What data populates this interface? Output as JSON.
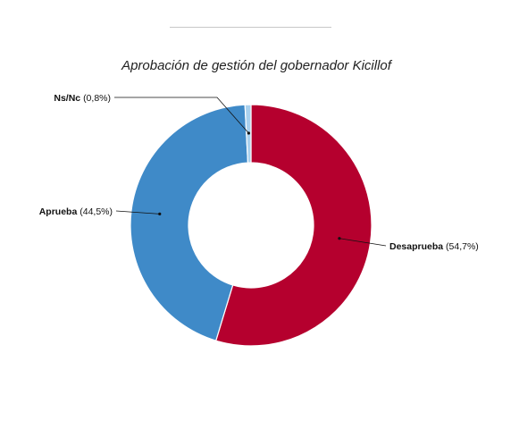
{
  "chart_data": {
    "type": "pie",
    "variant": "donut",
    "title": "Aprobación de gestión del gobernador Kicillof",
    "slices": [
      {
        "label": "Desaprueba",
        "value": 54.7,
        "value_text": "(54,7%)",
        "color": "#b5002e"
      },
      {
        "label": "Aprueba",
        "value": 44.5,
        "value_text": "(44,5%)",
        "color": "#3f8ac8"
      },
      {
        "label": "Ns/Nc",
        "value": 0.8,
        "value_text": "(0,8%)",
        "color": "#a9d1ee"
      }
    ],
    "start_angle": "12 o'clock",
    "direction": "clockwise",
    "legend": "none",
    "labels": "outside with leader lines"
  },
  "colors": {
    "top_rule": "#c8c8c8",
    "slice_border": "#ffffff"
  }
}
